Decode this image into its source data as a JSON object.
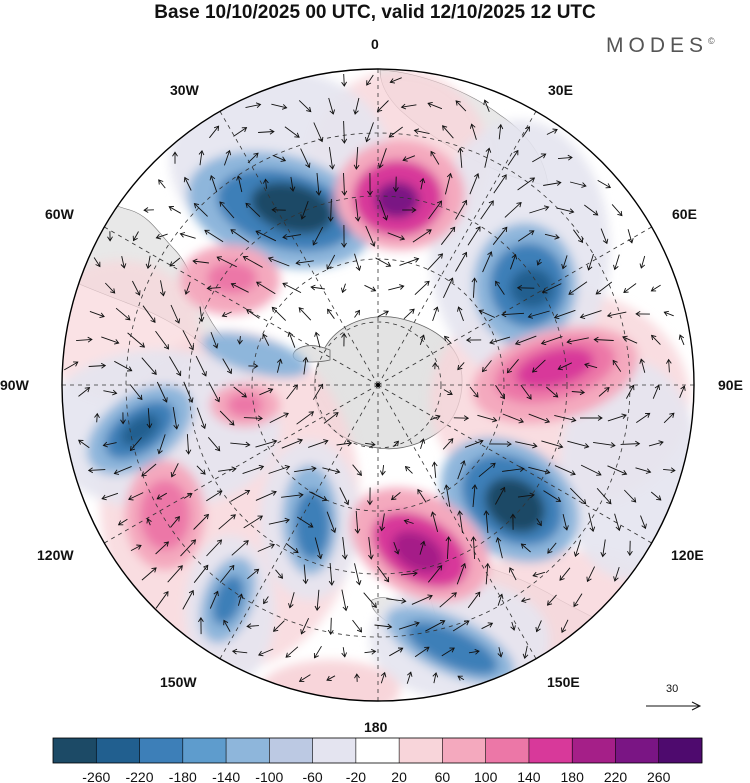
{
  "title": "Base 10/10/2025 00 UTC, valid 12/10/2025 12 UTC",
  "brand": {
    "name": "MODES",
    "mark": "©"
  },
  "longitude_labels": {
    "lon_0": "0",
    "lon_30e": "30E",
    "lon_60e": "60E",
    "lon_90e": "90E",
    "lon_120e": "120E",
    "lon_150e": "150E",
    "lon_180": "180",
    "lon_150w": "150W",
    "lon_120w": "120W",
    "lon_90w": "90W",
    "lon_60w": "60W",
    "lon_30w": "30W"
  },
  "reference_vector": "30",
  "colorbar": {
    "ticks": [
      "-260",
      "-220",
      "-180",
      "-140",
      "-100",
      "-60",
      "-20",
      "20",
      "60",
      "100",
      "140",
      "180",
      "220",
      "260"
    ],
    "colors": [
      "#1c4a66",
      "#215f8f",
      "#3d7fb8",
      "#5e9ccd",
      "#8eb6db",
      "#bcc9e3",
      "#e4e4f0",
      "#ffffff",
      "#f8d5da",
      "#f4a9be",
      "#ec77a7",
      "#d8399a",
      "#a51f88",
      "#7a1584",
      "#4e0a6e"
    ]
  },
  "palette": {
    "land": "#e3e3e3",
    "coast": "#666666",
    "grid": "#333333",
    "arrow": "#111111"
  }
}
